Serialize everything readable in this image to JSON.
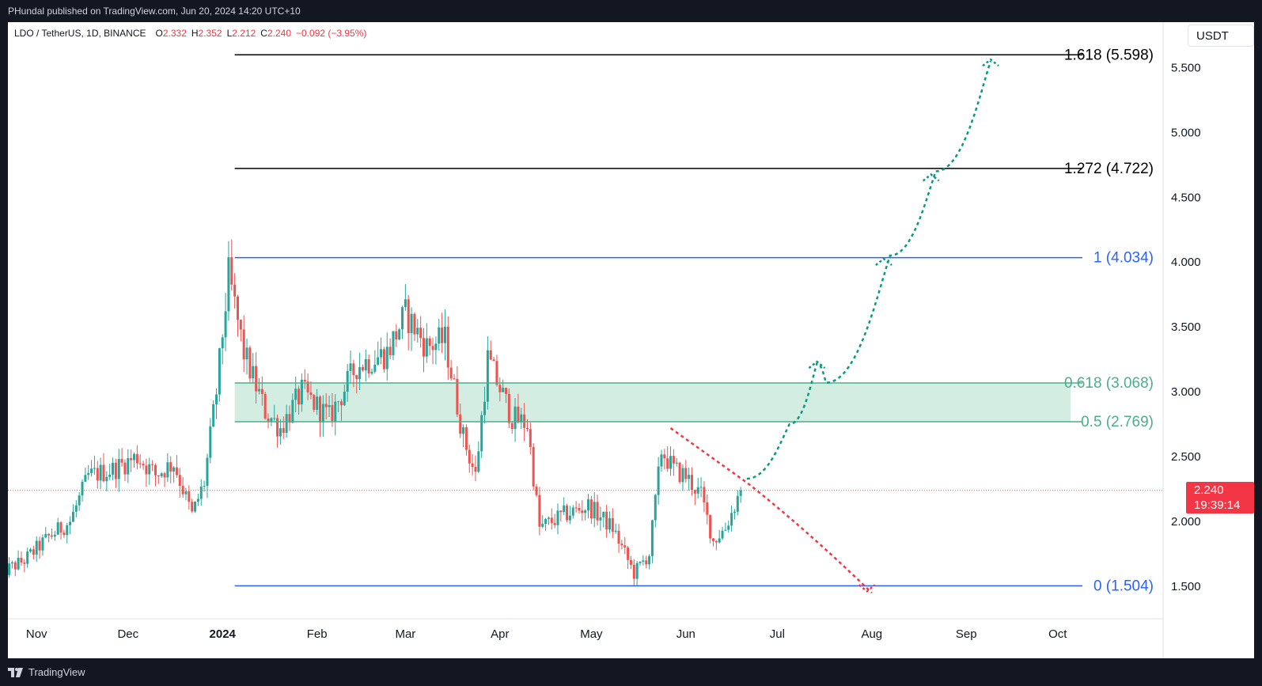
{
  "header": {
    "published_text": "PHundal published on TradingView.com, Jun 20, 2024 14:20 UTC+10"
  },
  "legend": {
    "symbol": "LDO / TetherUS, 1D, BINANCE",
    "open_label": "O",
    "open": "2.332",
    "high_label": "H",
    "high": "2.352",
    "low_label": "L",
    "low": "2.212",
    "close_label": "C",
    "close": "2.240",
    "change": "−0.092 (−3.95%)"
  },
  "price_scale": {
    "currency": "USDT",
    "last_price": "2.240",
    "countdown": "19:39:14"
  },
  "footer": {
    "brand": "TradingView",
    "logo_icon": "tradingview-logo-icon"
  },
  "colors": {
    "up": "#26a69a",
    "down": "#ef5350",
    "fib_blue": "#2962ff",
    "fib_green": "#4caf89",
    "fib_black": "#000000",
    "zone_fill": "#d4ede3",
    "projection_green": "#089981",
    "projection_red": "#f23645"
  },
  "chart_data": {
    "type": "candlestick",
    "symbol": "LDO / TetherUS",
    "timeframe": "1D",
    "exchange": "BINANCE",
    "x_axis_labels": [
      "Nov",
      "Dec",
      "2024",
      "Feb",
      "Mar",
      "Apr",
      "May",
      "Jun",
      "Jul",
      "Aug",
      "Sep",
      "Oct"
    ],
    "y_ticks": [
      "1.500",
      "2.000",
      "2.500",
      "3.000",
      "3.500",
      "4.000",
      "4.500",
      "5.000",
      "5.500"
    ],
    "ylim": [
      1.25,
      5.85
    ],
    "last_price": 2.24,
    "price_points": [
      {
        "date": "2023-10-20",
        "close": 1.6
      },
      {
        "date": "2023-10-28",
        "close": 1.7
      },
      {
        "date": "2023-11-05",
        "close": 1.88
      },
      {
        "date": "2023-11-12",
        "close": 2.0
      },
      {
        "date": "2023-11-18",
        "close": 2.35
      },
      {
        "date": "2023-11-26",
        "close": 2.4
      },
      {
        "date": "2023-12-04",
        "close": 2.5
      },
      {
        "date": "2023-12-10",
        "close": 2.36
      },
      {
        "date": "2023-12-16",
        "close": 2.45
      },
      {
        "date": "2023-12-22",
        "close": 2.05
      },
      {
        "date": "2023-12-26",
        "close": 2.3
      },
      {
        "date": "2023-12-30",
        "close": 3.0
      },
      {
        "date": "2024-01-03",
        "close": 3.9
      },
      {
        "date": "2024-01-08",
        "close": 3.3
      },
      {
        "date": "2024-01-15",
        "close": 2.85
      },
      {
        "date": "2024-01-20",
        "close": 2.72
      },
      {
        "date": "2024-01-27",
        "close": 3.0
      },
      {
        "date": "2024-02-05",
        "close": 2.8
      },
      {
        "date": "2024-02-14",
        "close": 3.2
      },
      {
        "date": "2024-02-24",
        "close": 3.3
      },
      {
        "date": "2024-03-01",
        "close": 3.6
      },
      {
        "date": "2024-03-08",
        "close": 3.35
      },
      {
        "date": "2024-03-14",
        "close": 3.4
      },
      {
        "date": "2024-03-20",
        "close": 2.65
      },
      {
        "date": "2024-03-24",
        "close": 2.35
      },
      {
        "date": "2024-03-28",
        "close": 3.25
      },
      {
        "date": "2024-04-05",
        "close": 2.8
      },
      {
        "date": "2024-04-10",
        "close": 2.75
      },
      {
        "date": "2024-04-14",
        "close": 1.95
      },
      {
        "date": "2024-04-22",
        "close": 2.05
      },
      {
        "date": "2024-04-30",
        "close": 2.12
      },
      {
        "date": "2024-05-08",
        "close": 1.95
      },
      {
        "date": "2024-05-15",
        "close": 1.6
      },
      {
        "date": "2024-05-20",
        "close": 1.75
      },
      {
        "date": "2024-05-24",
        "close": 2.55
      },
      {
        "date": "2024-05-28",
        "close": 2.4
      },
      {
        "date": "2024-06-01",
        "close": 2.35
      },
      {
        "date": "2024-06-06",
        "close": 2.2
      },
      {
        "date": "2024-06-10",
        "close": 1.85
      },
      {
        "date": "2024-06-14",
        "close": 1.95
      },
      {
        "date": "2024-06-19",
        "close": 2.24
      }
    ],
    "fib_levels": [
      {
        "ratio": "0",
        "price": 1.504,
        "label": "0 (1.504)"
      },
      {
        "ratio": "0.5",
        "price": 2.769,
        "label": "0.5 (2.769)"
      },
      {
        "ratio": "0.618",
        "price": 3.068,
        "label": "0.618 (3.068)"
      },
      {
        "ratio": "1",
        "price": 4.034,
        "label": "1 (4.034)"
      },
      {
        "ratio": "1.272",
        "price": 4.722,
        "label": "1.272 (4.722)"
      },
      {
        "ratio": "1.618",
        "price": 5.598,
        "label": "1.618 (5.598)"
      }
    ],
    "zone": {
      "from": 2.769,
      "to": 3.068
    },
    "projections": {
      "bullish_path": [
        {
          "date": "2024-06-21",
          "price": 2.33
        },
        {
          "date": "2024-07-05",
          "price": 2.75
        },
        {
          "date": "2024-07-14",
          "price": 3.22
        },
        {
          "date": "2024-07-17",
          "price": 3.07
        },
        {
          "date": "2024-08-07",
          "price": 4.05
        },
        {
          "date": "2024-08-22",
          "price": 4.7
        },
        {
          "date": "2024-09-09",
          "price": 5.55
        }
      ],
      "bearish_path": [
        {
          "date": "2024-05-27",
          "price": 2.72
        },
        {
          "date": "2024-06-21",
          "price": 2.3
        },
        {
          "date": "2024-07-10",
          "price": 1.95
        },
        {
          "date": "2024-08-01",
          "price": 1.45
        }
      ]
    }
  }
}
